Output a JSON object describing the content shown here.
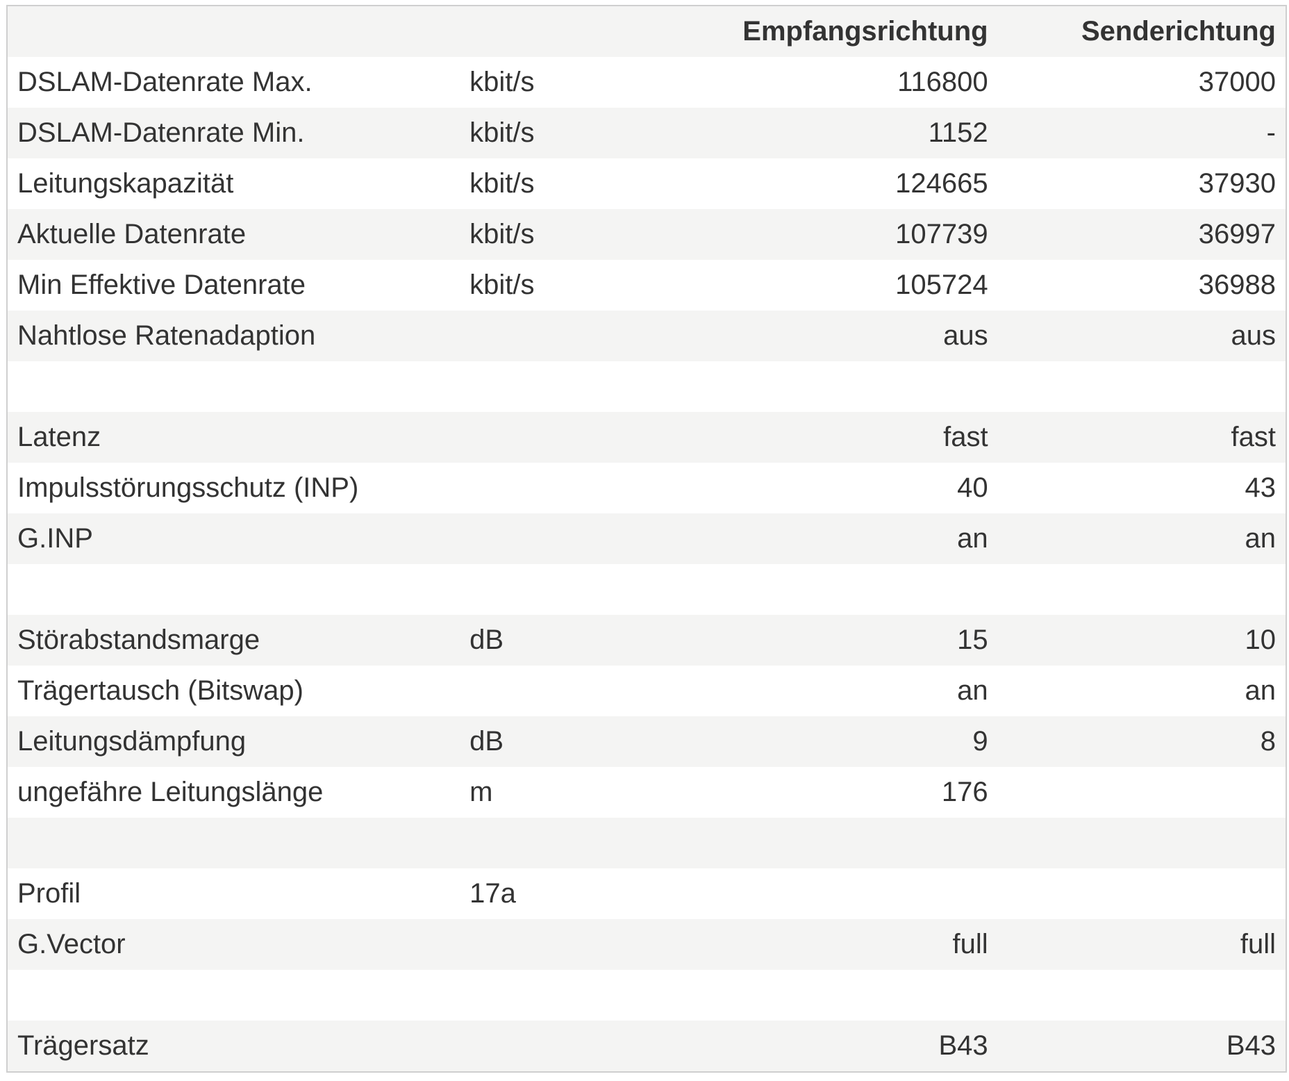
{
  "table": {
    "header": [
      "Empfangsrichtung",
      "Senderichtung"
    ],
    "rows": [
      [
        "DSLAM-Datenrate Max.",
        "kbit/s",
        116800,
        37000
      ],
      [
        "DSLAM-Datenrate Min.",
        "kbit/s",
        1152,
        "-"
      ],
      [
        "Leitungskapazität",
        "kbit/s",
        124665,
        37930
      ],
      [
        "Aktuelle Datenrate",
        "kbit/s",
        107739,
        36997
      ],
      [
        "Min Effektive Datenrate",
        "kbit/s",
        105724,
        36988
      ],
      [
        "Nahtlose Ratenadaption",
        null,
        "aus",
        "aus"
      ],
      null,
      [
        "Latenz",
        null,
        "fast",
        "fast"
      ],
      [
        "Impulsstörungsschutz (INP)",
        null,
        40,
        43
      ],
      [
        "G.INP",
        null,
        "an",
        "an"
      ],
      null,
      [
        "Störabstandsmarge",
        "dB",
        15,
        10
      ],
      [
        "Trägertausch (Bitswap)",
        null,
        "an",
        "an"
      ],
      [
        "Leitungsdämpfung",
        "dB",
        9,
        8
      ],
      [
        "ungefähre Leitungslänge",
        "m",
        176,
        null
      ],
      null,
      [
        "Profil",
        "17a",
        null,
        null
      ],
      [
        "G.Vector",
        null,
        "full",
        "full"
      ],
      null,
      [
        "Trägersatz",
        null,
        "B43",
        "B43"
      ]
    ]
  }
}
